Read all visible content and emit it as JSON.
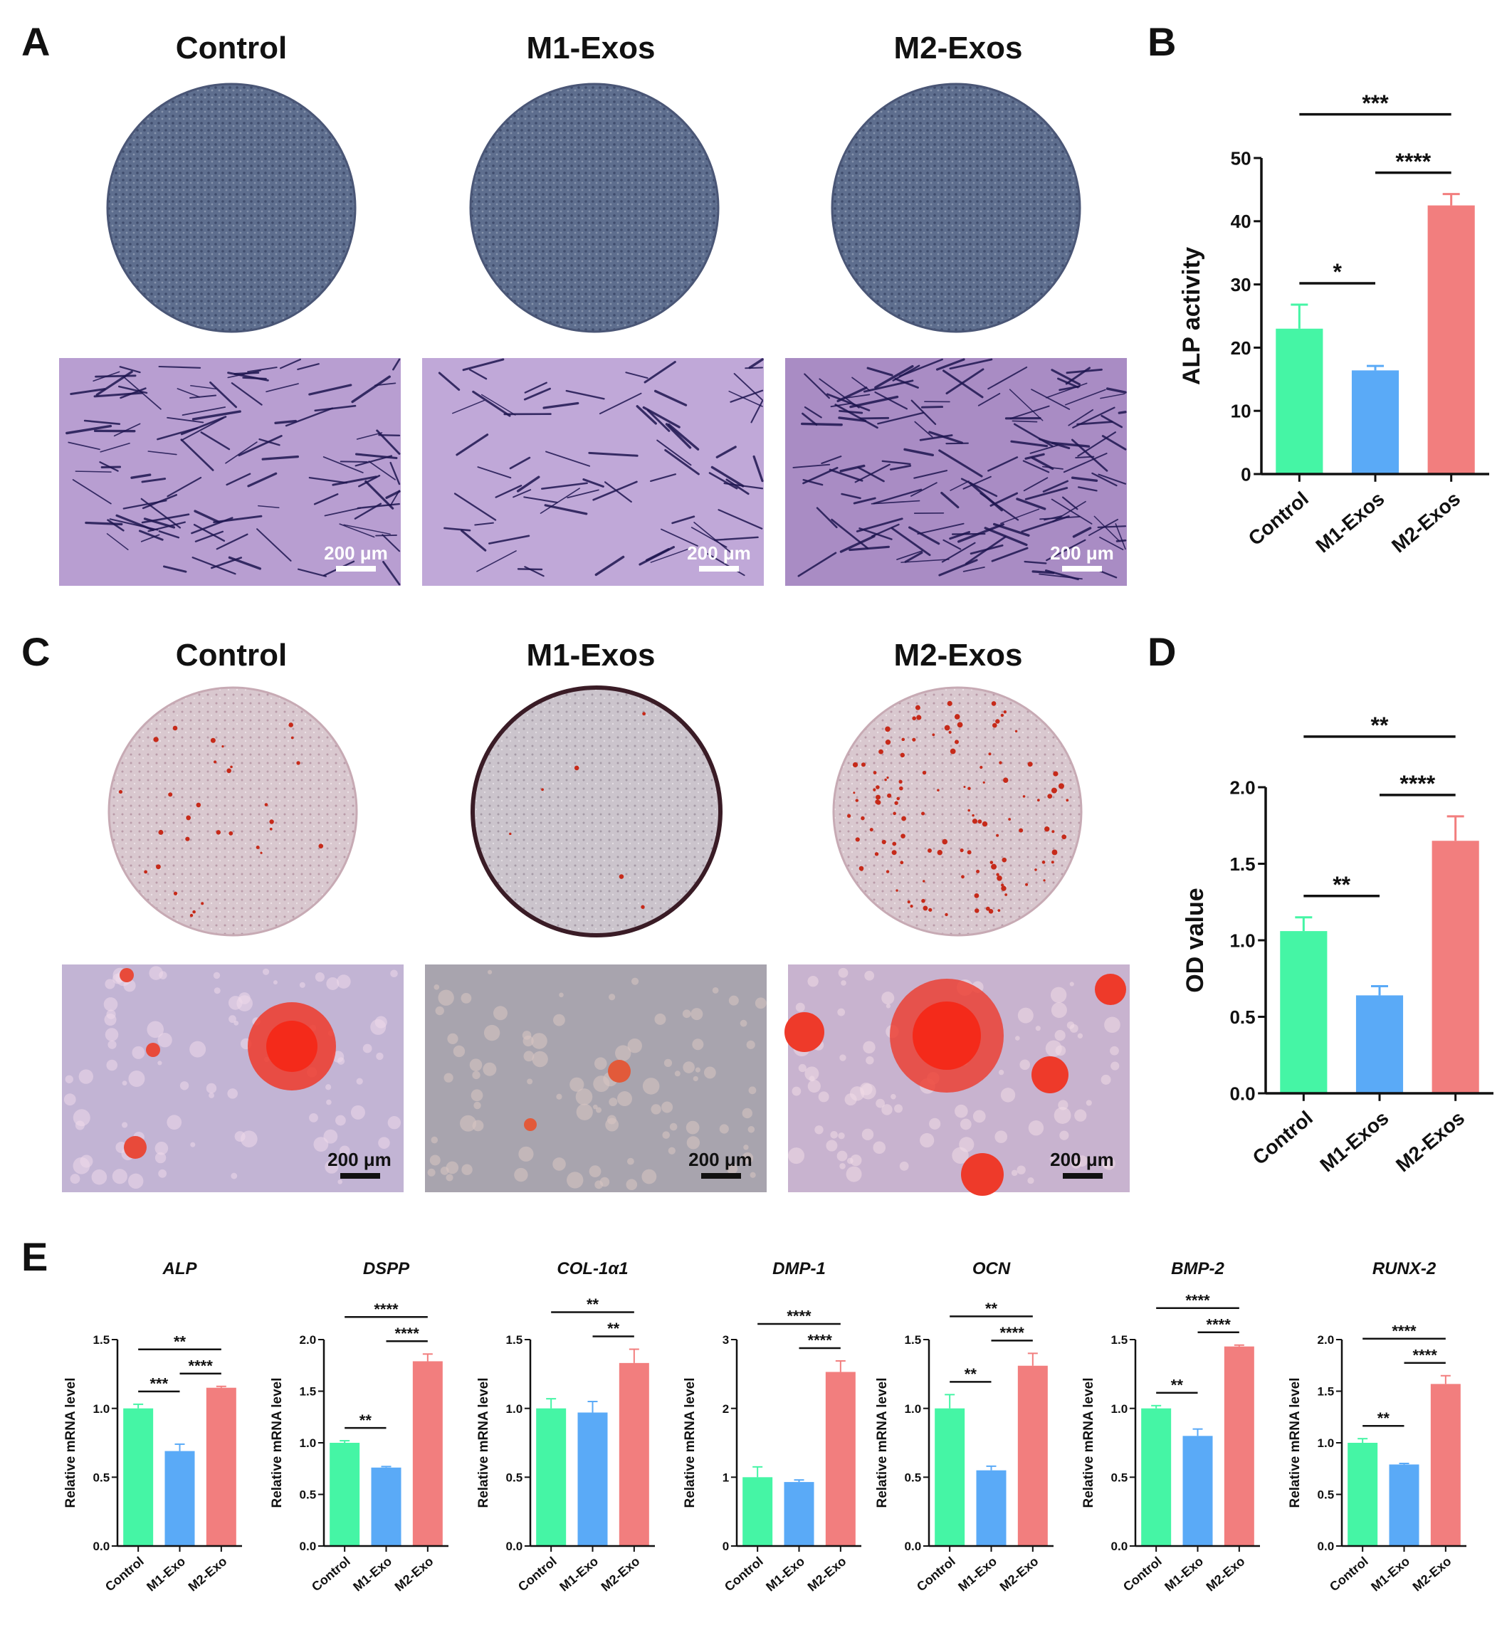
{
  "colors": {
    "control": "#45F5A5",
    "m1": "#5AAAF7",
    "m2": "#F27E7E",
    "alp_dish": "#5e6e8e",
    "alp_field": "#b89ed1",
    "alp_cell": "#1e1650",
    "ars_dish": "#d9c8cf",
    "ars_field": "#c2b4d4",
    "ars_nodule": "#ee3a2a"
  },
  "panel_letters": {
    "A": "A",
    "B": "B",
    "C": "C",
    "D": "D",
    "E": "E"
  },
  "panelA": {
    "groups": [
      "Control",
      "M1-Exos",
      "M2-Exos"
    ],
    "scalebar": "200 μm"
  },
  "panelC": {
    "groups": [
      "Control",
      "M1-Exos",
      "M2-Exos"
    ],
    "scalebar": "200 μm"
  },
  "chart_data": [
    {
      "id": "B",
      "type": "bar",
      "categories": [
        "Control",
        "M1-Exos",
        "M2-Exos"
      ],
      "values": [
        23.0,
        16.4,
        42.5
      ],
      "errors": [
        3.8,
        0.7,
        1.8
      ],
      "ylabel": "ALP activity",
      "ylim": [
        0,
        50
      ],
      "yticks": [
        0,
        10,
        20,
        30,
        40,
        50
      ],
      "ytick_labels": [
        "0",
        "10",
        "20",
        "30",
        "40",
        "50"
      ],
      "significance": [
        {
          "from": 0,
          "to": 1,
          "label": "*"
        },
        {
          "from": 1,
          "to": 2,
          "label": "****"
        },
        {
          "from": 0,
          "to": 2,
          "label": "***"
        }
      ]
    },
    {
      "id": "D",
      "type": "bar",
      "categories": [
        "Control",
        "M1-Exos",
        "M2-Exos"
      ],
      "values": [
        1.06,
        0.64,
        1.65
      ],
      "errors": [
        0.09,
        0.06,
        0.16
      ],
      "ylabel": "OD value",
      "ylim": [
        0,
        2
      ],
      "yticks": [
        0,
        0.5,
        1,
        1.5,
        2
      ],
      "ytick_labels": [
        "0.0",
        "0.5",
        "1.0",
        "1.5",
        "2.0"
      ],
      "significance": [
        {
          "from": 0,
          "to": 1,
          "label": "**"
        },
        {
          "from": 1,
          "to": 2,
          "label": "****"
        },
        {
          "from": 0,
          "to": 2,
          "label": "**"
        }
      ]
    },
    {
      "id": "E1",
      "type": "bar",
      "title": "ALP",
      "categories": [
        "Control",
        "M1-Exo",
        "M2-Exo"
      ],
      "values": [
        1.0,
        0.69,
        1.15
      ],
      "errors": [
        0.03,
        0.05,
        0.01
      ],
      "ylabel": "Relative mRNA level",
      "ylim": [
        0,
        1.5
      ],
      "yticks": [
        0,
        0.5,
        1,
        1.5
      ],
      "ytick_labels": [
        "0.0",
        "0.5",
        "1.0",
        "1.5"
      ],
      "significance": [
        {
          "from": 0,
          "to": 1,
          "label": "***"
        },
        {
          "from": 1,
          "to": 2,
          "label": "****"
        },
        {
          "from": 0,
          "to": 2,
          "label": "**"
        }
      ]
    },
    {
      "id": "E2",
      "type": "bar",
      "title": "DSPP",
      "categories": [
        "Control",
        "M1-Exo",
        "M2-Exo"
      ],
      "values": [
        1.0,
        0.76,
        1.79
      ],
      "errors": [
        0.02,
        0.01,
        0.07
      ],
      "ylabel": "Relative mRNA level",
      "ylim": [
        0,
        2
      ],
      "yticks": [
        0,
        0.5,
        1,
        1.5,
        2
      ],
      "ytick_labels": [
        "0.0",
        "0.5",
        "1.0",
        "1.5",
        "2.0"
      ],
      "significance": [
        {
          "from": 0,
          "to": 1,
          "label": "**"
        },
        {
          "from": 1,
          "to": 2,
          "label": "****"
        },
        {
          "from": 0,
          "to": 2,
          "label": "****"
        }
      ]
    },
    {
      "id": "E3",
      "type": "bar",
      "title": "COL-1α1",
      "categories": [
        "Control",
        "M1-Exo",
        "M2-Exo"
      ],
      "values": [
        1.0,
        0.97,
        1.33
      ],
      "errors": [
        0.07,
        0.08,
        0.1
      ],
      "ylabel": "Relative mRNA level",
      "ylim": [
        0,
        1.5
      ],
      "yticks": [
        0,
        0.5,
        1,
        1.5
      ],
      "ytick_labels": [
        "0.0",
        "0.5",
        "1.0",
        "1.5"
      ],
      "significance": [
        {
          "from": 1,
          "to": 2,
          "label": "**"
        },
        {
          "from": 0,
          "to": 2,
          "label": "**"
        }
      ]
    },
    {
      "id": "E4",
      "type": "bar",
      "title": "DMP-1",
      "categories": [
        "Control",
        "M1-Exo",
        "M2-Exo"
      ],
      "values": [
        1.0,
        0.93,
        2.53
      ],
      "errors": [
        0.15,
        0.03,
        0.16
      ],
      "ylabel": "Relative mRNA level",
      "ylim": [
        0,
        3
      ],
      "yticks": [
        0,
        1,
        2,
        3
      ],
      "ytick_labels": [
        "0",
        "1",
        "2",
        "3"
      ],
      "significance": [
        {
          "from": 1,
          "to": 2,
          "label": "****"
        },
        {
          "from": 0,
          "to": 2,
          "label": "****"
        }
      ]
    },
    {
      "id": "E5",
      "type": "bar",
      "title": "OCN",
      "categories": [
        "Control",
        "M1-Exo",
        "M2-Exo"
      ],
      "values": [
        1.0,
        0.55,
        1.31
      ],
      "errors": [
        0.1,
        0.03,
        0.09
      ],
      "ylabel": "Relative mRNA level",
      "ylim": [
        0,
        1.5
      ],
      "yticks": [
        0,
        0.5,
        1,
        1.5
      ],
      "ytick_labels": [
        "0.0",
        "0.5",
        "1.0",
        "1.5"
      ],
      "significance": [
        {
          "from": 0,
          "to": 1,
          "label": "**"
        },
        {
          "from": 1,
          "to": 2,
          "label": "****"
        },
        {
          "from": 0,
          "to": 2,
          "label": "**"
        }
      ]
    },
    {
      "id": "E6",
      "type": "bar",
      "title": "BMP-2",
      "categories": [
        "Control",
        "M1-Exo",
        "M2-Exo"
      ],
      "values": [
        1.0,
        0.8,
        1.45
      ],
      "errors": [
        0.02,
        0.05,
        0.01
      ],
      "ylabel": "Relative mRNA level",
      "ylim": [
        0,
        1.5
      ],
      "yticks": [
        0,
        0.5,
        1,
        1.5
      ],
      "ytick_labels": [
        "0.0",
        "0.5",
        "1.0",
        "1.5"
      ],
      "significance": [
        {
          "from": 0,
          "to": 1,
          "label": "**"
        },
        {
          "from": 1,
          "to": 2,
          "label": "****"
        },
        {
          "from": 0,
          "to": 2,
          "label": "****"
        }
      ]
    },
    {
      "id": "E7",
      "type": "bar",
      "title": "RUNX-2",
      "categories": [
        "Control",
        "M1-Exo",
        "M2-Exo"
      ],
      "values": [
        1.0,
        0.79,
        1.57
      ],
      "errors": [
        0.04,
        0.01,
        0.08
      ],
      "ylabel": "Relative mRNA level",
      "ylim": [
        0,
        2
      ],
      "yticks": [
        0,
        0.5,
        1,
        1.5,
        2
      ],
      "ytick_labels": [
        "0.0",
        "0.5",
        "1.0",
        "1.5",
        "2.0"
      ],
      "significance": [
        {
          "from": 0,
          "to": 1,
          "label": "**"
        },
        {
          "from": 1,
          "to": 2,
          "label": "****"
        },
        {
          "from": 0,
          "to": 2,
          "label": "****"
        }
      ]
    }
  ]
}
